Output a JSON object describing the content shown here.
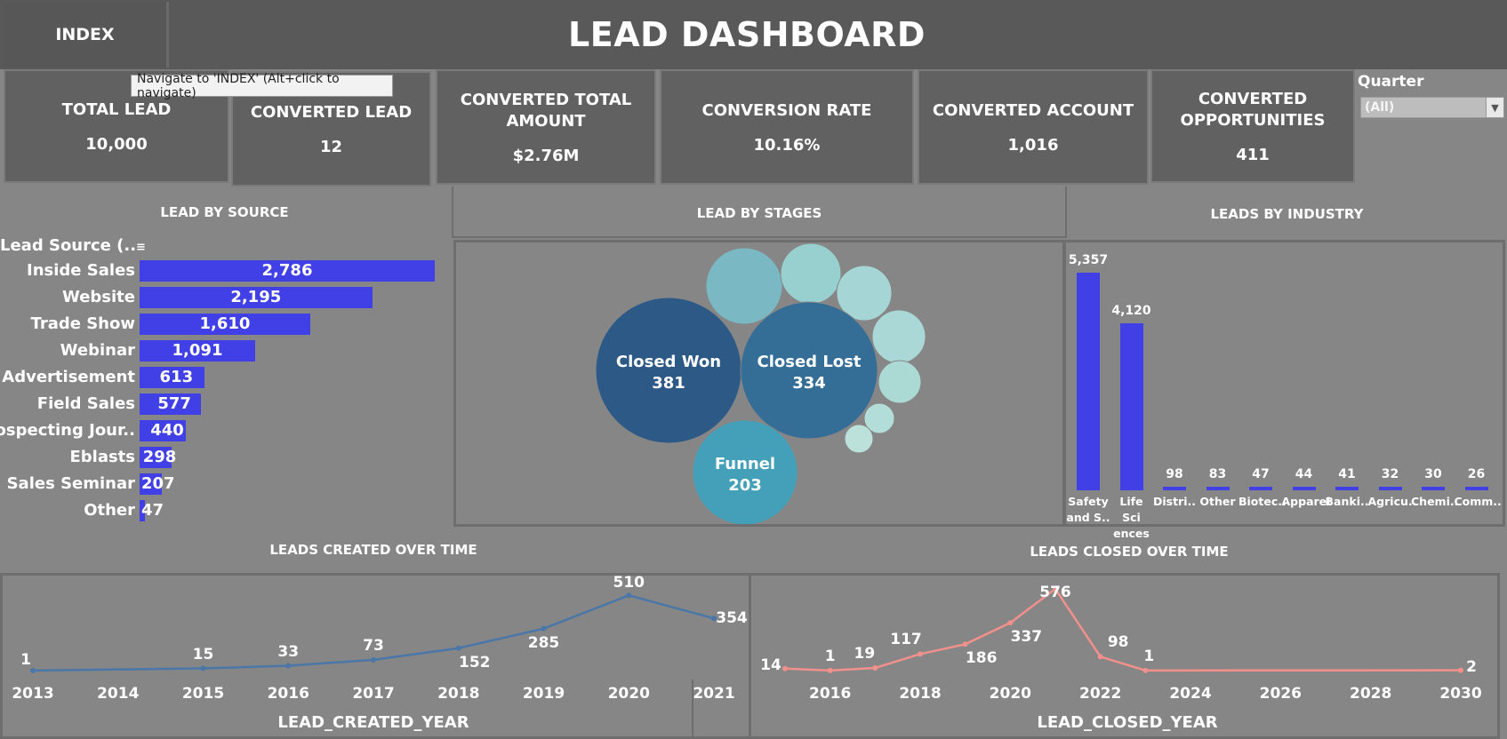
{
  "header": {
    "index_label": "INDEX",
    "title": "LEAD DASHBOARD"
  },
  "tooltip": "Navigate to 'INDEX' (Alt+click to navigate)",
  "kpis": [
    {
      "label": "TOTAL LEAD",
      "value": "10,000"
    },
    {
      "label": "CONVERTED LEAD",
      "value": "12"
    },
    {
      "label": "CONVERTED TOTAL AMOUNT",
      "value": "$2.76M"
    },
    {
      "label": "CONVERSION RATE",
      "value": "10.16%"
    },
    {
      "label": "CONVERTED ACCOUNT",
      "value": "1,016"
    },
    {
      "label": "CONVERTED OPPORTUNITIES",
      "value": "411"
    }
  ],
  "filter": {
    "label": "Quarter",
    "selected": "(All)"
  },
  "sections": {
    "by_source": "LEAD BY SOURCE",
    "by_stages": "LEAD BY STAGES",
    "by_industry": "LEADS BY INDUSTRY",
    "created": "LEADS CREATED OVER TIME",
    "closed": "LEADS CLOSED OVER TIME"
  },
  "source_header": "Lead Source (..",
  "chart_data": [
    {
      "type": "bar",
      "orientation": "horizontal",
      "title": "LEAD BY SOURCE",
      "categories": [
        "Inside Sales",
        "Website",
        "Trade Show",
        "Webinar",
        "Advertisement",
        "Field Sales",
        "Prospecting Jour..",
        "Eblasts",
        "Sales Seminar",
        "Other"
      ],
      "values": [
        2786,
        2195,
        1610,
        1091,
        613,
        577,
        440,
        298,
        207,
        47
      ],
      "value_labels": [
        "2,786",
        "2,195",
        "1,610",
        "1,091",
        "613",
        "577",
        "440",
        "298",
        "207",
        "47"
      ],
      "color": "#4040e6"
    },
    {
      "type": "bubble",
      "title": "LEAD BY STAGES",
      "labeled": [
        {
          "name": "Closed Won",
          "value": 381
        },
        {
          "name": "Closed Lost",
          "value": 334
        },
        {
          "name": "Funnel",
          "value": 203
        }
      ],
      "colors": [
        "#2d5987",
        "#346d96",
        "#44a0b8"
      ]
    },
    {
      "type": "bar",
      "title": "LEADS BY INDUSTRY",
      "categories": [
        [
          "Safety",
          "and S.."
        ],
        [
          "Life Sci",
          "ences"
        ],
        [
          "Distri.."
        ],
        [
          "Other"
        ],
        [
          "Biotec.."
        ],
        [
          "Apparel"
        ],
        [
          "Banki.."
        ],
        [
          "Agricu.."
        ],
        [
          "Chemi.."
        ],
        [
          "Comm.."
        ]
      ],
      "values": [
        5357,
        4120,
        98,
        83,
        47,
        44,
        41,
        32,
        30,
        26
      ],
      "value_labels": [
        "5,357",
        "4,120",
        "98",
        "83",
        "47",
        "44",
        "41",
        "32",
        "30",
        "26"
      ],
      "color": "#4040e6"
    },
    {
      "type": "line",
      "title": "LEADS CREATED OVER TIME",
      "xlabel": "LEAD_CREATED_YEAR",
      "x": [
        2013,
        2015,
        2016,
        2017,
        2018,
        2019,
        2020,
        2021
      ],
      "y": [
        1,
        15,
        33,
        73,
        152,
        285,
        510,
        354
      ],
      "xticks": [
        "2013",
        "2014",
        "2015",
        "2016",
        "2017",
        "2018",
        "2019",
        "2020",
        "2021"
      ],
      "xlim": [
        2013,
        2021
      ],
      "ylim": [
        0,
        560
      ],
      "color": "#4a77a8"
    },
    {
      "type": "line",
      "title": "LEADS CLOSED OVER TIME",
      "xlabel": "LEAD_CLOSED_YEAR",
      "x": [
        2015,
        2016,
        2017,
        2018,
        2019,
        2020,
        2021,
        2022,
        2023,
        2030
      ],
      "y": [
        14,
        1,
        19,
        117,
        186,
        337,
        576,
        98,
        1,
        2
      ],
      "xticks": [
        "2016",
        "2018",
        "2020",
        "2022",
        "2024",
        "2026",
        "2028",
        "2030"
      ],
      "xlim": [
        2015,
        2030
      ],
      "ylim": [
        0,
        620
      ],
      "color": "#f2908c"
    }
  ]
}
